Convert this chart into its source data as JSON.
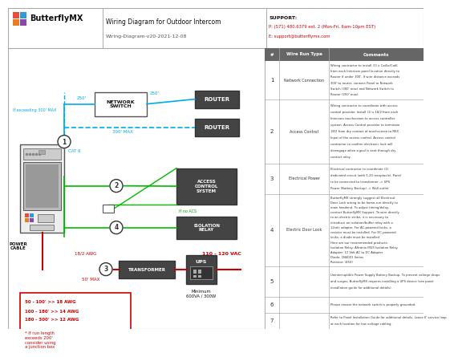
{
  "title": "Wiring Diagram for Outdoor Intercom",
  "subtitle": "Wiring-Diagram-v20-2021-12-08",
  "logo_text": "ButterflyMX",
  "support_label": "SUPPORT:",
  "support_phone": "P: (571) 480.6379 ext. 2 (Mon-Fri, 6am-10pm EST)",
  "support_email": "E: support@butterflymx.com",
  "bg_color": "#ffffff",
  "wire_blue": "#00aaee",
  "wire_green": "#00bb00",
  "wire_red": "#cc0000",
  "cyan_text": "#00aaee",
  "green_text": "#00aa00",
  "red_text": "#cc0000",
  "dark_box": "#444444",
  "table_header_bg": "#666666",
  "table_rows": [
    {
      "num": "1",
      "type": "Network Connection",
      "comments": "Wiring contractor to install (1) x Cat5e/Cat6\nfrom each Intercom panel location directly to\nRouter if under 300'. If wire distance exceeds\n300' to router, connect Panel to Network\nSwitch (300' max) and Network Switch to\nRouter (250' max)."
    },
    {
      "num": "2",
      "type": "Access Control",
      "comments": "Wiring contractor to coordinate with access\ncontrol provider. Install (1) x 18/2 from each\nIntercom touchscreen to access controller\nsystem. Access Control provider to terminate\n18/2 from dry contact of touchscreen to REX\nInput of the access control. Access control\ncontractor to confirm electronic lock will\ndisengage when signal is sent through dry\ncontact relay."
    },
    {
      "num": "3",
      "type": "Electrical Power",
      "comments": "Electrical contractor to coordinate (1)\ndedicated circuit (with 5-20 receptacle). Panel\nto be connected to transformer -> UPS\nPower (Battery Backup) -> Wall outlet"
    },
    {
      "num": "4",
      "type": "Electric Door Lock",
      "comments": "ButterflyMX strongly suggest all Electrical\nDoor Lock wiring to be home-run directly to\nmain headend. To adjust timing/delay,\ncontact ButterflyMX Support. To wire directly\nto an electric strike, it is necessary to\nintroduce an isolation/buffer relay with a\n12vdc adapter. For AC-powered locks, a\nresistor must be installed. For DC-powered\nlocks, a diode must be installed.\nHere are our recommended products:\nIsolation Relay: Altronix IR5S Isolation Relay\nAdapter: 12 Volt AC to DC Adapter\nDiode: 1N4001 Series\nResistor: (450)"
    },
    {
      "num": "5",
      "type": "",
      "comments": "Uninterruptible Power Supply Battery Backup. To prevent voltage drops\nand surges, ButterflyMX requires installing a UPS device (see panel\ninstallation guide for additional details)."
    },
    {
      "num": "6",
      "type": "",
      "comments": "Please ensure the network switch is properly grounded."
    },
    {
      "num": "7",
      "type": "",
      "comments": "Refer to Panel Installation Guide for additional details. Leave 6' service loop\nat each location for low voltage cabling."
    }
  ]
}
